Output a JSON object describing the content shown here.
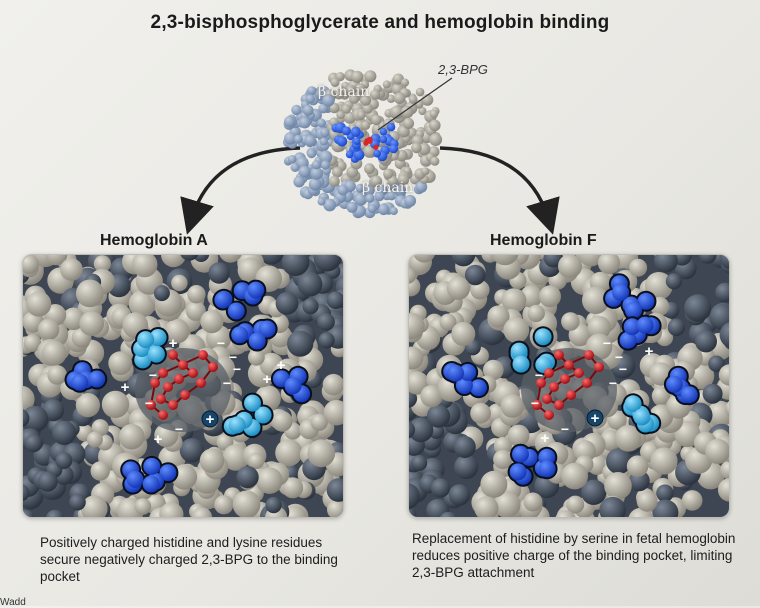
{
  "title": "2,3-bisphosphoglycerate and hemoglobin binding",
  "top_figure": {
    "bpg_label": "2,3-BPG",
    "beta_chain_top": "β chain",
    "beta_chain_bottom": "β chain"
  },
  "panels": [
    {
      "heading": "Hemoglobin A",
      "caption": "Positively charged histidine and lysine residues secure negatively charged 2,3-BPG to the binding pocket"
    },
    {
      "heading": "Hemoglobin F",
      "caption": "Replacement of histidine by serine in fetal hemoglobin reduces positive charge of the binding pocket, limiting 2,3-BPG attachment"
    }
  ],
  "charge_symbols": {
    "positive": "+",
    "negative": "−"
  },
  "footer_text": "Wadd",
  "colors": {
    "histidine": "#3fb8e6",
    "lysine": "#1f4fd6",
    "bpg": "#d9262b",
    "background_atoms": "#bdb8ab",
    "dark_atoms": "#54606f"
  }
}
